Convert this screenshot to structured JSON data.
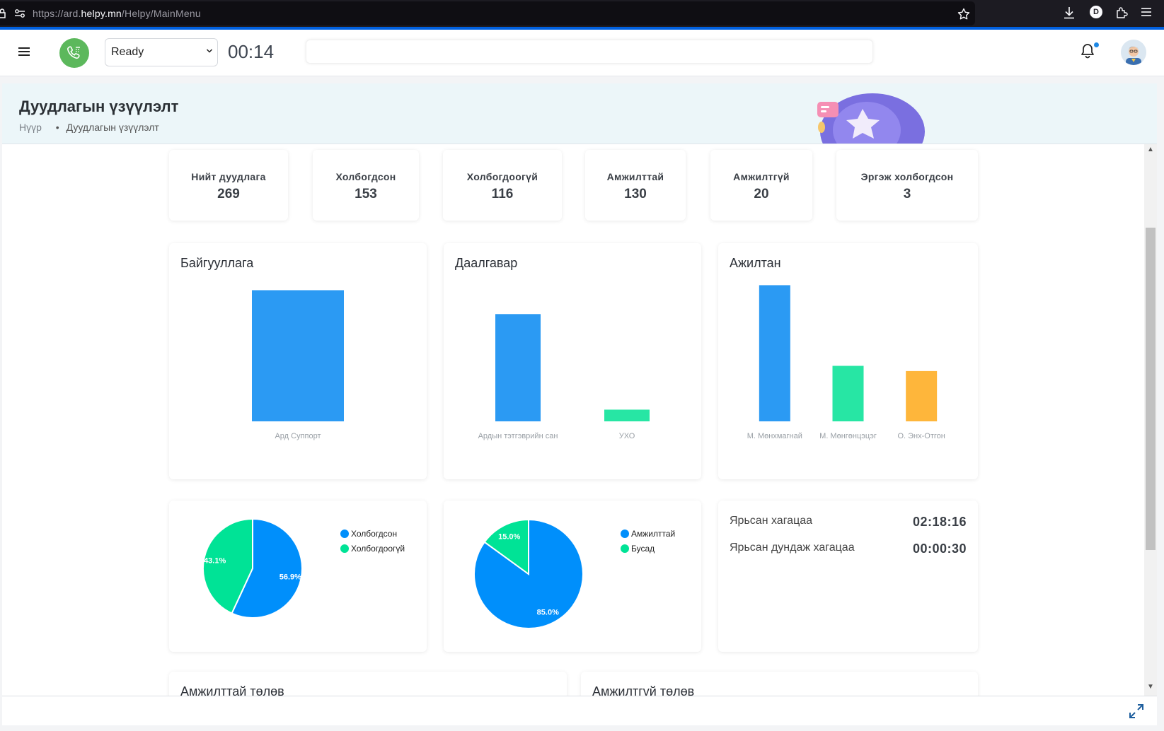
{
  "browser": {
    "url_prefix": "https://ard.",
    "url_host": "helpy.mn",
    "url_path": "/Helpy/MainMenu",
    "profile_letter": "D"
  },
  "header": {
    "status_value": "Ready",
    "timer": "00:14"
  },
  "page": {
    "title": "Дуудлагын үзүүлэлт",
    "breadcrumb_home": "Нүүр",
    "breadcrumb_current": "Дуудлагын үзүүлэлт"
  },
  "stats": [
    {
      "label": "Нийт дуудлага",
      "value": "269"
    },
    {
      "label": "Холбогдсон",
      "value": "153"
    },
    {
      "label": "Холбогдоогүй",
      "value": "116"
    },
    {
      "label": "Амжилттай",
      "value": "130"
    },
    {
      "label": "Амжилтгүй",
      "value": "20"
    },
    {
      "label": "Эргэж холбогдсон",
      "value": "3"
    }
  ],
  "cards": {
    "org_title": "Байгууллага",
    "task_title": "Даалгавар",
    "emp_title": "Ажилтан",
    "duration_label": "Ярьсан хагацаа",
    "duration_value": "02:18:16",
    "avg_label": "Ярьсан дундаж хагацаа",
    "avg_value": "00:00:30",
    "success_title": "Амжилттай төлөв",
    "fail_title": "Амжилтгүй төлөв"
  },
  "colors": {
    "blue": "#2b9af3",
    "green": "#27e6a4",
    "orange": "#feb63b",
    "pie_blue": "#008ffb",
    "pie_green": "#00e396"
  },
  "chart_data": [
    {
      "type": "bar",
      "title": "Байгууллага",
      "categories": [
        "Ард Суппорт"
      ],
      "values": [
        269
      ],
      "colors": [
        "#2b9af3"
      ],
      "ylim": [
        0,
        290
      ]
    },
    {
      "type": "bar",
      "title": "Даалгавар",
      "categories": [
        "Ардын тэтгэврийн сан",
        "УХО"
      ],
      "values": [
        220,
        24
      ],
      "colors": [
        "#2b9af3",
        "#27e6a4"
      ],
      "ylim": [
        0,
        290
      ]
    },
    {
      "type": "bar",
      "title": "Ажилтан",
      "categories": [
        "М. Мөнхмагнай",
        "М. Мөнгөнцэцэг",
        "О. Энх-Отгон"
      ],
      "values": [
        130,
        53,
        48
      ],
      "colors": [
        "#2b9af3",
        "#27e6a4",
        "#feb63b"
      ],
      "ylim": [
        0,
        135
      ]
    },
    {
      "type": "pie",
      "labels": [
        "Холбогдсон",
        "Холбогдоогүй"
      ],
      "values": [
        56.9,
        43.1
      ],
      "value_labels": [
        "56.9%",
        "43.1%"
      ],
      "colors": [
        "#008ffb",
        "#00e396"
      ]
    },
    {
      "type": "pie",
      "labels": [
        "Амжилттай",
        "Бусад"
      ],
      "values": [
        85.0,
        15.0
      ],
      "value_labels": [
        "85.0%",
        "15.0%"
      ],
      "colors": [
        "#008ffb",
        "#00e396"
      ]
    }
  ]
}
